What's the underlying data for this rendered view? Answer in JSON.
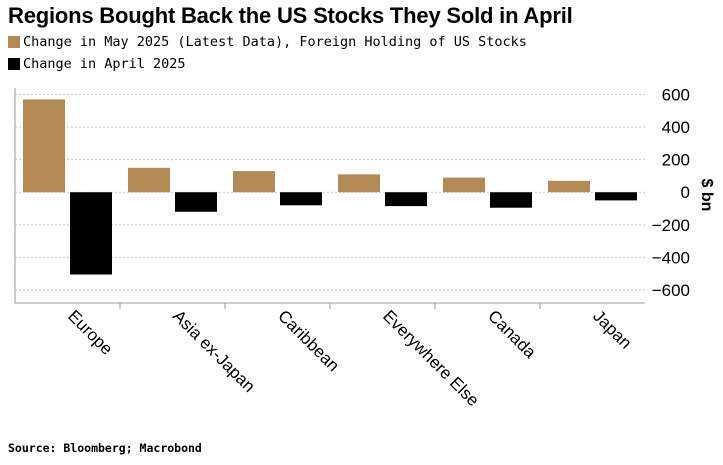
{
  "chart_data": {
    "type": "bar",
    "title": "Regions Bought Back the US Stocks They Sold in April",
    "categories": [
      "Europe",
      "Asia ex-Japan",
      "Caribbean",
      "Everywhere Else",
      "Canada",
      "Japan"
    ],
    "series": [
      {
        "name": "Change in May 2025 (Latest Data), Foreign Holding of US Stocks",
        "color": "#b48a55",
        "values": [
          570,
          150,
          130,
          110,
          90,
          70
        ]
      },
      {
        "name": "Change in April 2025",
        "color": "#000000",
        "values": [
          -505,
          -120,
          -80,
          -85,
          -95,
          -50
        ]
      }
    ],
    "ylabel": "$ bn",
    "ylim": [
      -680,
      640
    ],
    "yticks": [
      600,
      400,
      200,
      0,
      -200,
      -400,
      -600
    ],
    "ytick_labels": [
      "600",
      "400",
      "200",
      "0",
      "−200",
      "−400",
      "−600"
    ],
    "grid": true,
    "legend": "top-left",
    "source": "Source: Bloomberg; Macrobond"
  }
}
